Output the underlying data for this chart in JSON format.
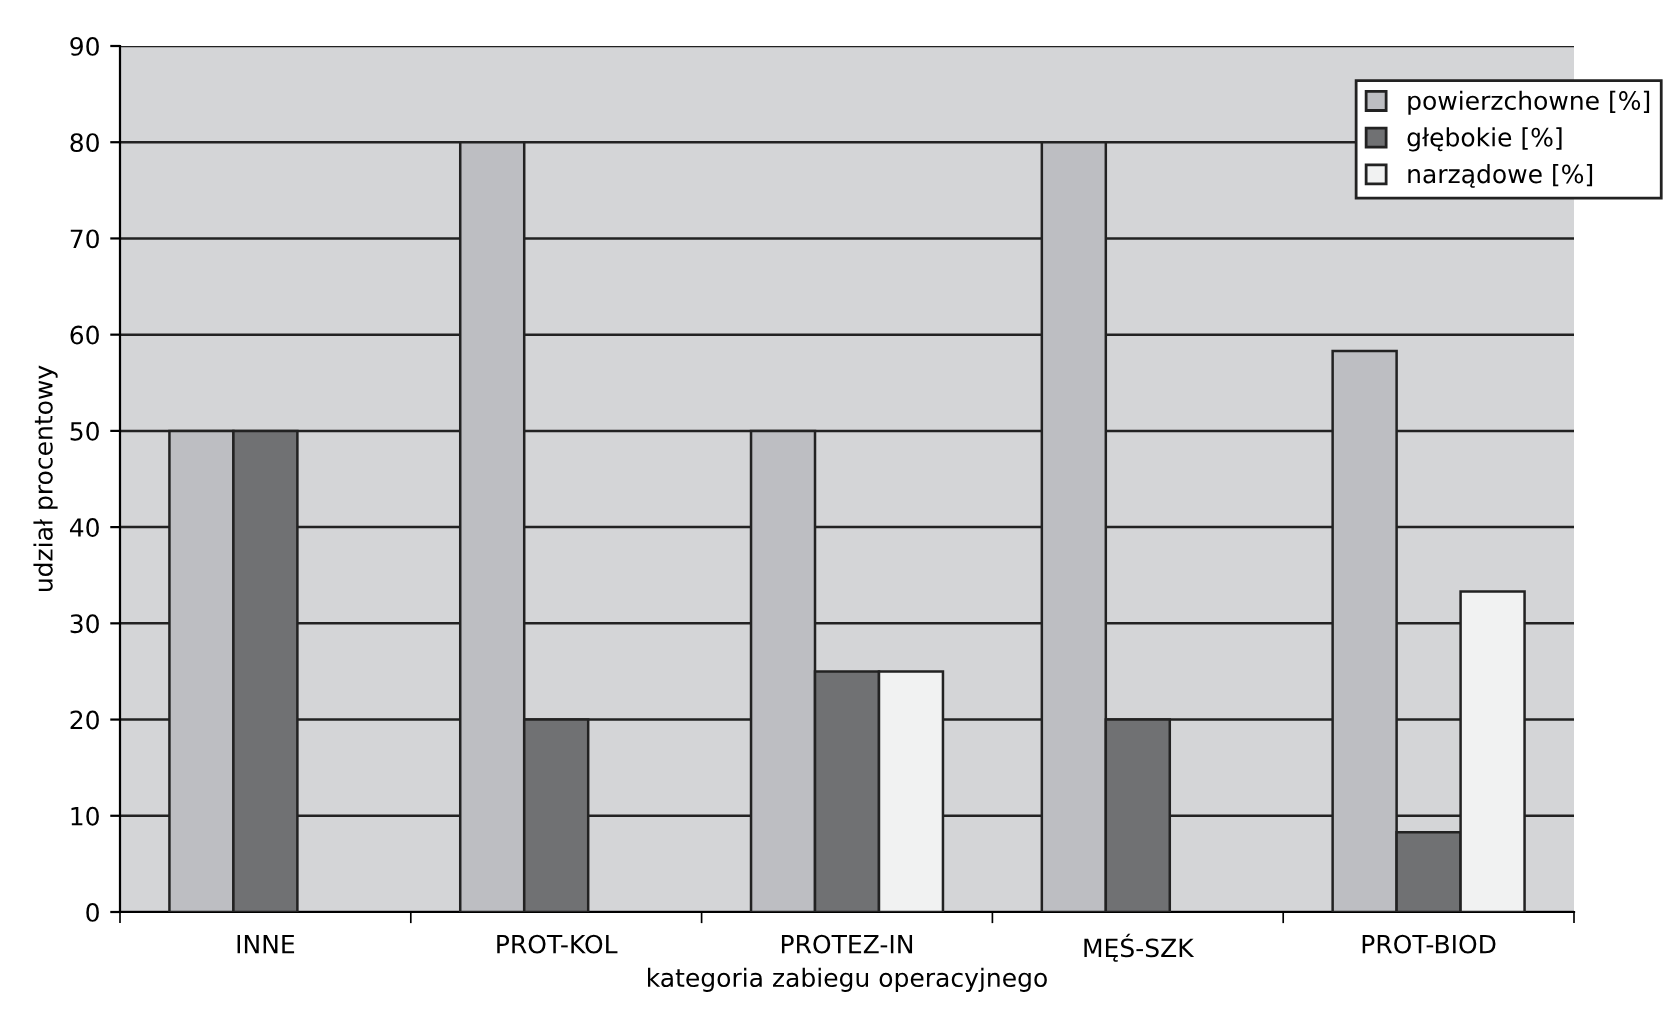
{
  "chart_data": {
    "type": "bar",
    "xlabel": "kategoria zabiegu operacyjnego",
    "ylabel": "udział procentowy",
    "categories": [
      "INNE",
      "PROT-KOL",
      "PROTEZ-IN",
      "MĘŚ-SZK",
      "PROT-BIOD"
    ],
    "series": [
      {
        "name": "powierzchowne [%]",
        "color": "#bdbec2",
        "values": [
          50,
          80,
          50,
          80,
          58.3
        ]
      },
      {
        "name": "głębokie [%]",
        "color": "#707173",
        "values": [
          50,
          20,
          25,
          20,
          8.3
        ]
      },
      {
        "name": "narządowe [%]",
        "color": "#f1f2f2",
        "values": [
          null,
          null,
          25,
          null,
          33.3
        ]
      }
    ],
    "ylim": [
      0,
      90
    ],
    "yticks": [
      0,
      10,
      20,
      30,
      40,
      50,
      60,
      70,
      80,
      90
    ],
    "grid": "y",
    "legend": "top right"
  }
}
